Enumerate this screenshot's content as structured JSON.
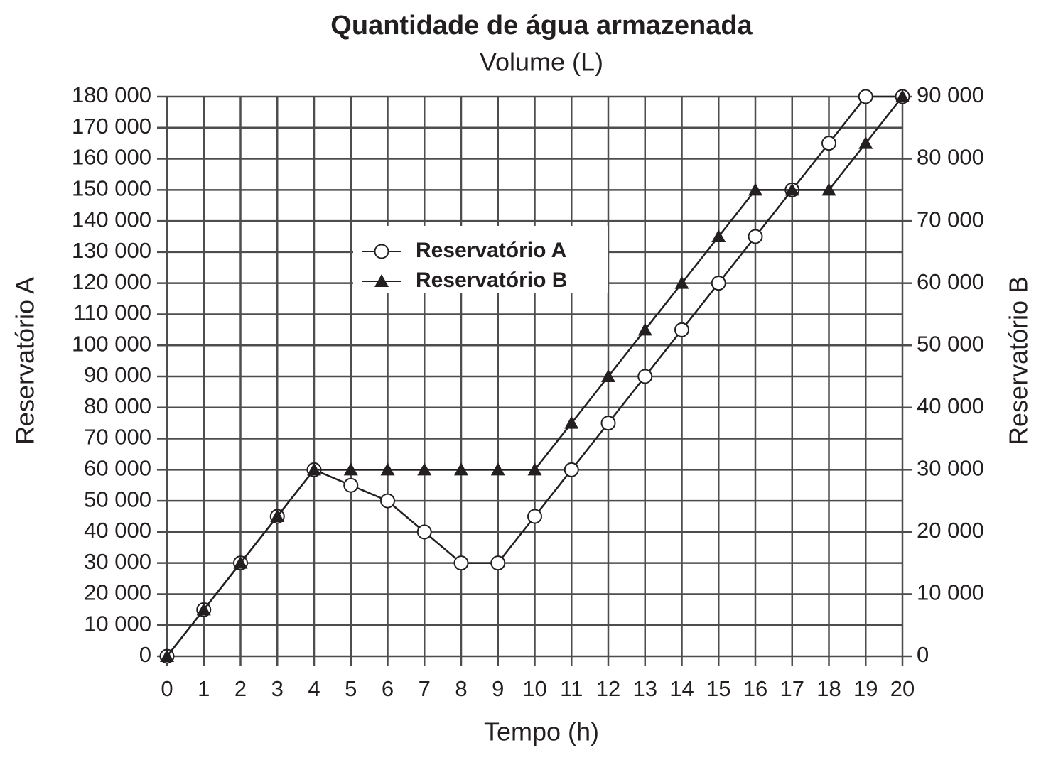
{
  "chart_data": {
    "type": "line",
    "title": "Quantidade de água armazenada",
    "subtitle": "Volume (L)",
    "x_label": "Tempo (h)",
    "y_label": "Reservatório A",
    "y2_label": "Reservatório B",
    "x": [
      0,
      1,
      2,
      3,
      4,
      5,
      6,
      7,
      8,
      9,
      10,
      11,
      12,
      13,
      14,
      15,
      16,
      17,
      18,
      19,
      20
    ],
    "xlim": [
      0,
      20
    ],
    "xticks": [
      0,
      1,
      2,
      3,
      4,
      5,
      6,
      7,
      8,
      9,
      10,
      11,
      12,
      13,
      14,
      15,
      16,
      17,
      18,
      19,
      20
    ],
    "ylim": [
      0,
      180000
    ],
    "yticks": [
      0,
      {
        "value": 10000,
        "label": "10 000"
      },
      {
        "value": 20000,
        "label": "20 000"
      },
      {
        "value": 30000,
        "label": "30 000"
      },
      {
        "value": 40000,
        "label": "40 000"
      },
      {
        "value": 50000,
        "label": "50 000"
      },
      {
        "value": 60000,
        "label": "60 000"
      },
      {
        "value": 70000,
        "label": "70 000"
      },
      {
        "value": 80000,
        "label": "80 000"
      },
      {
        "value": 90000,
        "label": "90 000"
      },
      {
        "value": 100000,
        "label": "100 000"
      },
      {
        "value": 110000,
        "label": "110 000"
      },
      {
        "value": 120000,
        "label": "120 000"
      },
      {
        "value": 130000,
        "label": "130 000"
      },
      {
        "value": 140000,
        "label": "140 000"
      },
      {
        "value": 150000,
        "label": "150 000"
      },
      {
        "value": 160000,
        "label": "160 000"
      },
      {
        "value": 170000,
        "label": "170 000"
      },
      {
        "value": 180000,
        "label": "180 000"
      }
    ],
    "y2lim": [
      0,
      90000
    ],
    "y2ticks": [
      0,
      {
        "value": 10000,
        "label": "10 000"
      },
      {
        "value": 20000,
        "label": "20 000"
      },
      {
        "value": 30000,
        "label": "30 000"
      },
      {
        "value": 40000,
        "label": "40 000"
      },
      {
        "value": 50000,
        "label": "50 000"
      },
      {
        "value": 60000,
        "label": "60 000"
      },
      {
        "value": 70000,
        "label": "70 000"
      },
      {
        "value": 80000,
        "label": "80 000"
      },
      {
        "value": 90000,
        "label": "90 000"
      }
    ],
    "grid": true,
    "legend": "upper center",
    "series": [
      {
        "name": "Reservatório A",
        "color": "#231f20",
        "marker": "circle",
        "values": [
          0,
          15000,
          30000,
          45000,
          60000,
          55000,
          50000,
          40000,
          30000,
          30000,
          45000,
          60000,
          75000,
          90000,
          105000,
          120000,
          135000,
          150000,
          165000,
          180000,
          180000
        ]
      },
      {
        "name": "Reservatório B",
        "color": "#231f20",
        "marker": "triangle",
        "axis": "y2",
        "values": [
          0,
          7500,
          15000,
          22500,
          30000,
          30000,
          30000,
          30000,
          30000,
          30000,
          30000,
          37500,
          45000,
          52500,
          60000,
          67500,
          75000,
          75000,
          75000,
          82500,
          90000
        ]
      }
    ]
  }
}
